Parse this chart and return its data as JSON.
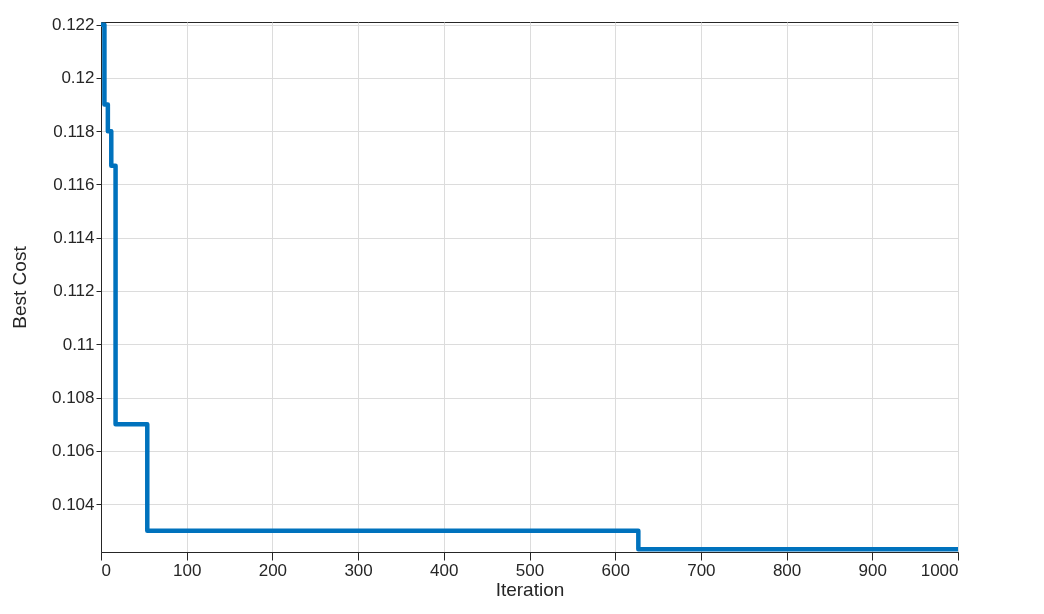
{
  "chart_data": {
    "type": "step",
    "xlabel": "Iteration",
    "ylabel": "Best Cost",
    "x": [
      0,
      4,
      8,
      12,
      17,
      54,
      627,
      1000
    ],
    "series": [
      {
        "color": "#0072bd",
        "values": [
          0.122,
          0.119,
          0.118,
          0.1167,
          0.107,
          0.103,
          0.1023,
          0.1023
        ]
      }
    ],
    "xlim": [
      0,
      1000
    ],
    "xticks": [
      0,
      100,
      200,
      300,
      400,
      500,
      600,
      700,
      800,
      900,
      1000
    ],
    "ylim": [
      0.1022,
      0.1221
    ],
    "yticks": [
      0.104,
      0.106,
      0.108,
      0.11,
      0.112,
      0.114,
      0.116,
      0.118,
      0.12,
      0.122
    ],
    "grid": true,
    "line_style": "solid",
    "marker": "none"
  }
}
